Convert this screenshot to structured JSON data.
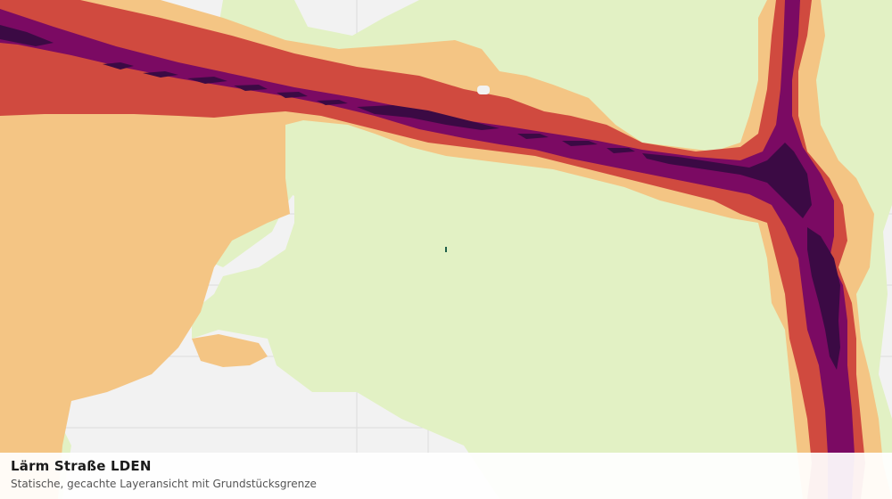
{
  "layer": {
    "title": "Lärm Straße LDEN",
    "subtitle": "Statische, gecachte Layeransicht mit Grundstücksgrenze"
  },
  "colors": {
    "background": "#f2f2f2",
    "parcel_lines": "#dddddd",
    "green_band": "#e2f1c4",
    "band_light_orange": "#f4c584",
    "band_red": "#d04a3f",
    "band_purple": "#7b0a63",
    "band_dark": "#3b0a44"
  }
}
